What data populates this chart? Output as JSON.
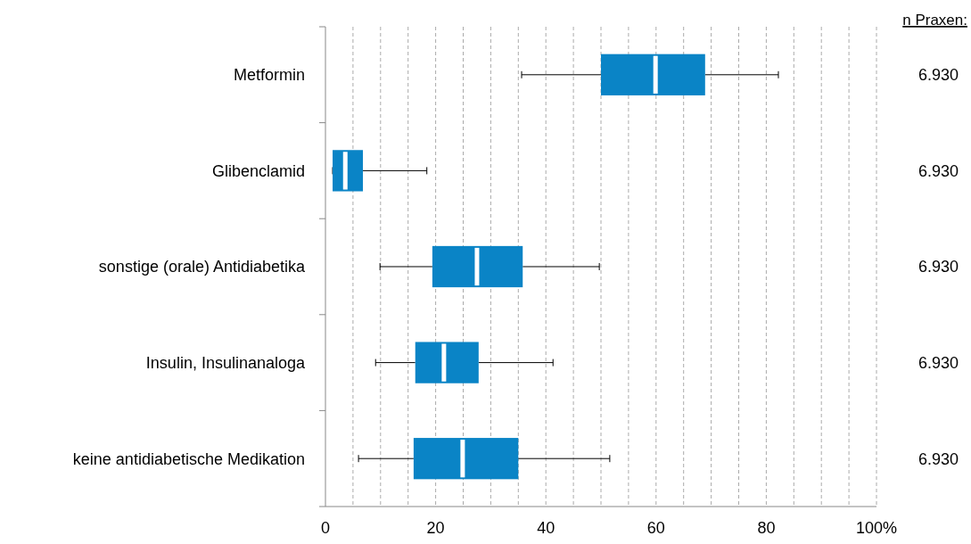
{
  "chart_data": {
    "type": "box",
    "orientation": "horizontal",
    "categories": [
      "Metformin",
      "Glibenclamid",
      "sonstige (orale) Antidiabetika",
      "Insulin, Insulinanaloga",
      "keine antidiabetische Medikation"
    ],
    "boxes": [
      {
        "low": 35.6,
        "q1": 50,
        "median": 59.9,
        "q3": 68.9,
        "high": 82.2
      },
      {
        "low": 1.3,
        "q1": 1.3,
        "median": 3.6,
        "q3": 6.8,
        "high": 18.4
      },
      {
        "low": 9.9,
        "q1": 19.4,
        "median": 27.5,
        "q3": 35.8,
        "high": 49.7
      },
      {
        "low": 9.1,
        "q1": 16.3,
        "median": 21.5,
        "q3": 27.8,
        "high": 41.3
      },
      {
        "low": 6,
        "q1": 16,
        "median": 24.9,
        "q3": 35,
        "high": 51.6
      }
    ],
    "color": "#0a84c6",
    "xlim": [
      0,
      100
    ],
    "xticks": [
      0,
      {
        "value": 5,
        "label": null
      },
      {
        "value": 10,
        "label": null
      },
      {
        "value": 15,
        "label": null
      },
      20,
      {
        "value": 25,
        "label": null
      },
      {
        "value": 30,
        "label": null
      },
      {
        "value": 35,
        "label": null
      },
      40,
      {
        "value": 45,
        "label": null
      },
      {
        "value": 50,
        "label": null
      },
      {
        "value": 55,
        "label": null
      },
      60,
      {
        "value": 65,
        "label": null
      },
      {
        "value": 70,
        "label": null
      },
      {
        "value": 75,
        "label": null
      },
      80,
      {
        "value": 85,
        "label": null
      },
      {
        "value": 90,
        "label": null
      },
      {
        "value": 95,
        "label": null
      },
      {
        "value": 100,
        "label": "100%"
      }
    ],
    "grid": "x",
    "annotations": [
      "n Praxen:",
      "6.930",
      "6.930",
      "6.930",
      "6.930",
      "6.930"
    ]
  }
}
